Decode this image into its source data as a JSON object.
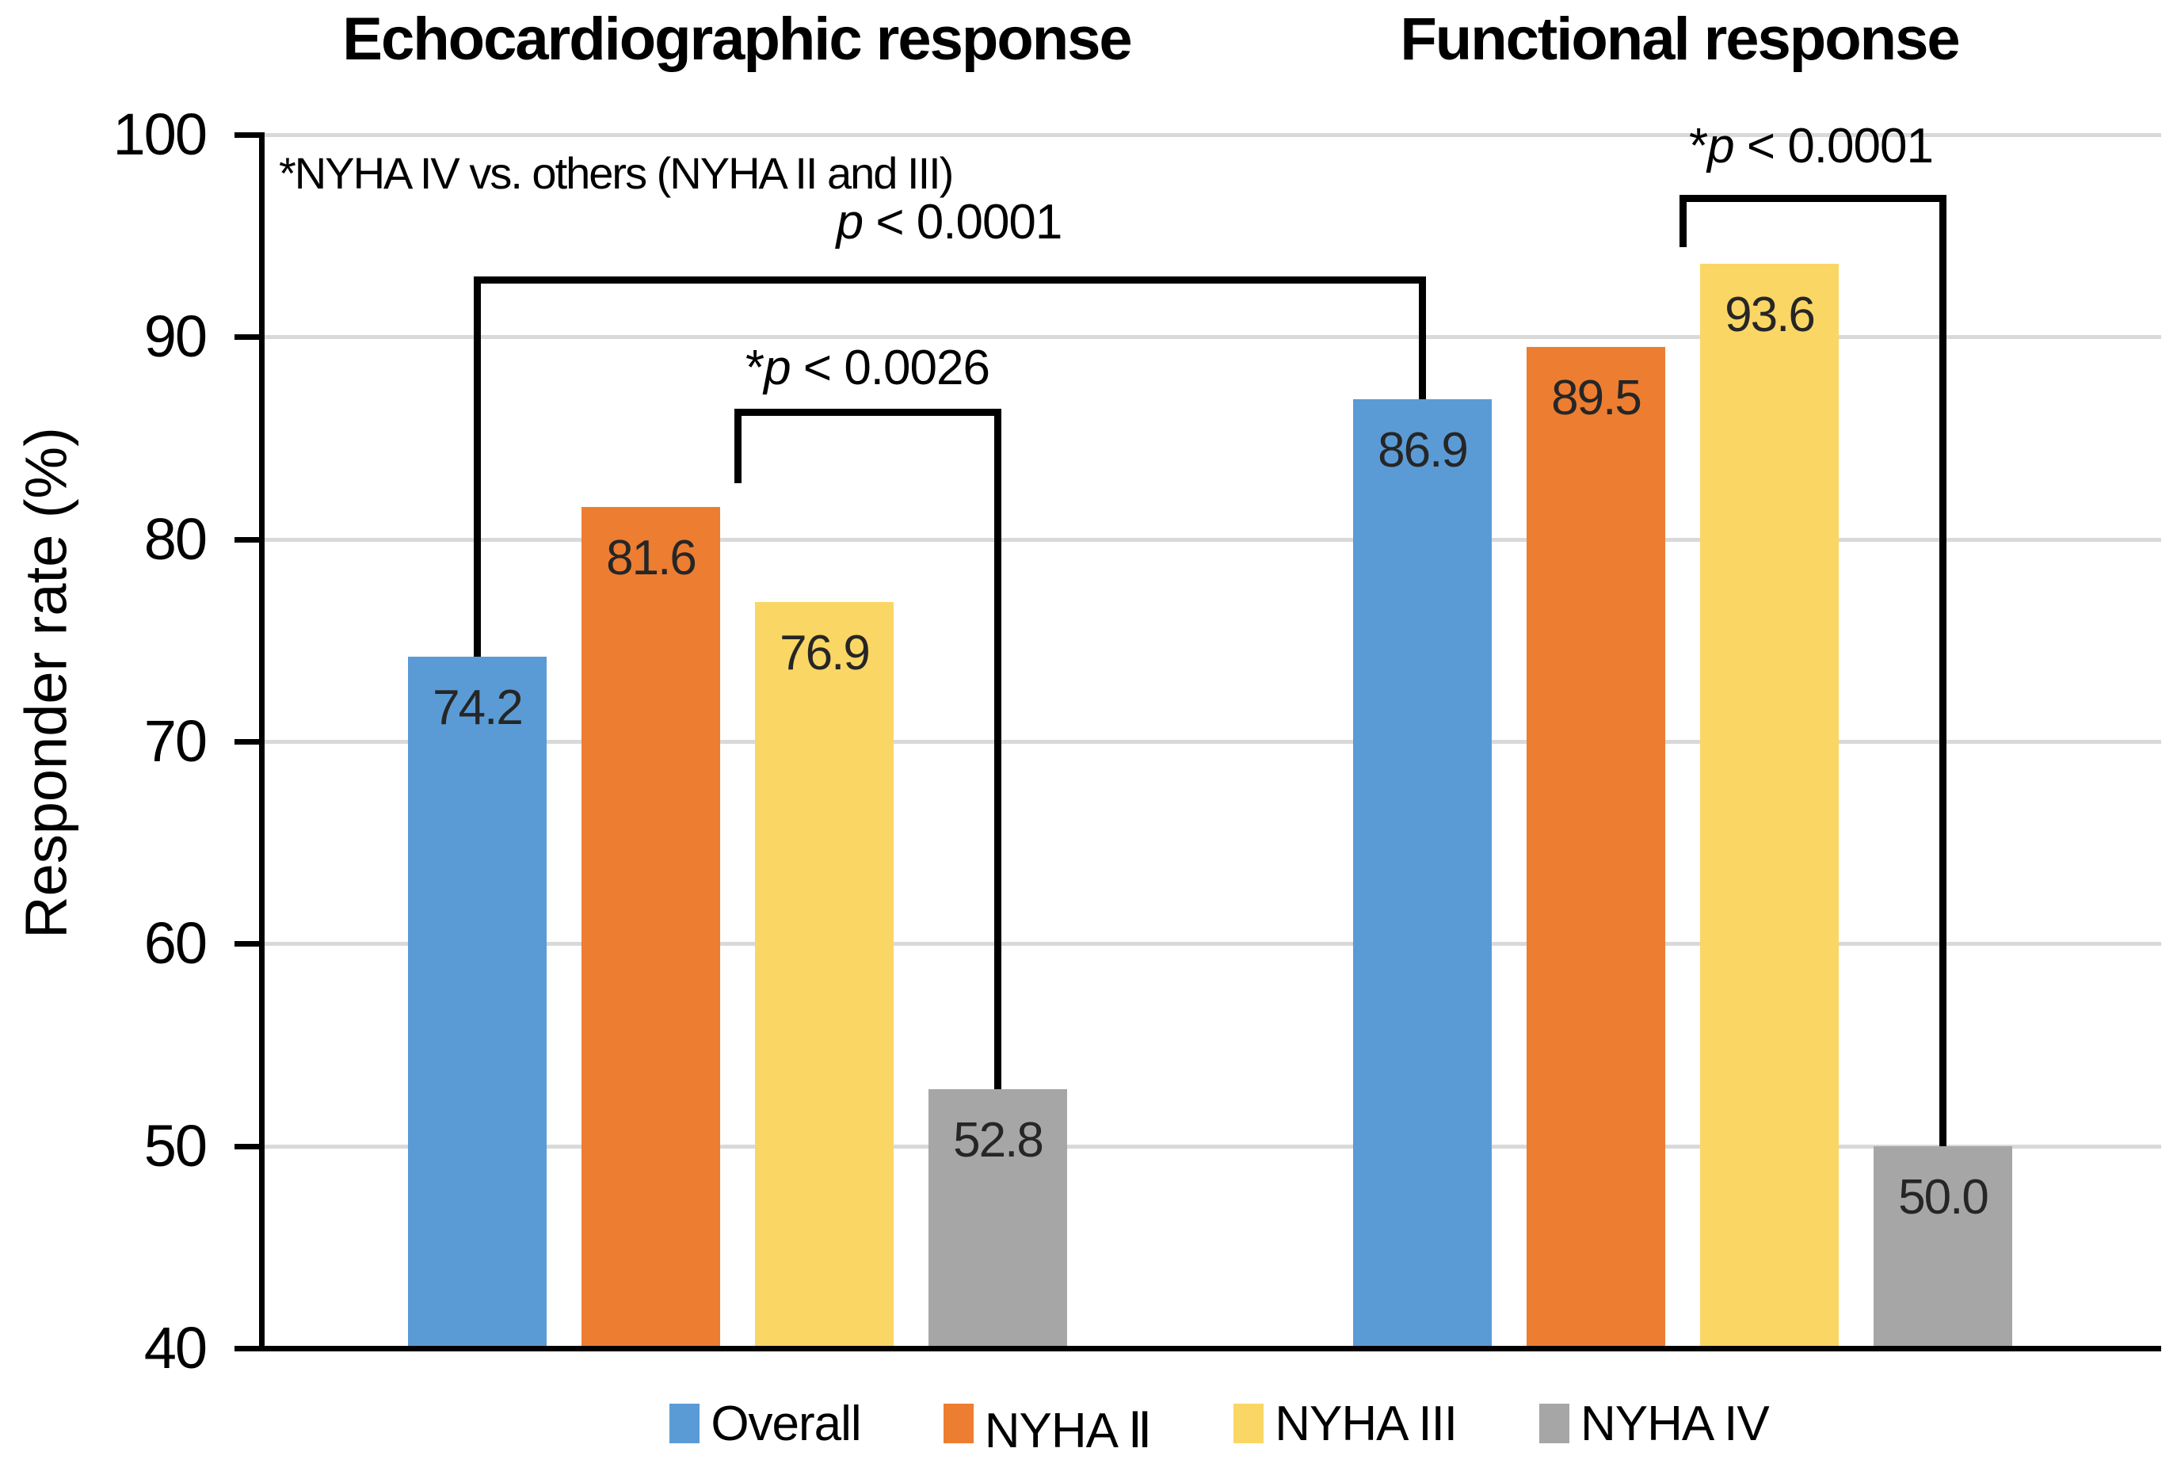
{
  "chart_data": {
    "type": "bar",
    "group_titles": {
      "left": "Echocardiographic response",
      "right": "Functional response"
    },
    "ylabel": "Responder rate (%)",
    "ylim": [
      40,
      100
    ],
    "yticks": [
      40,
      50,
      60,
      70,
      80,
      90,
      100
    ],
    "grid": true,
    "legend_position": "bottom",
    "groups": [
      "Echocardiographic response",
      "Functional response"
    ],
    "series": [
      {
        "name": "Overall",
        "color": "#5B9BD5",
        "values": [
          74.2,
          86.9
        ]
      },
      {
        "name": "NYHA Ⅱ",
        "color": "#ED7D31",
        "values": [
          81.6,
          89.5
        ]
      },
      {
        "name": "NYHA III",
        "color": "#FAD664",
        "values": [
          76.9,
          93.6
        ]
      },
      {
        "name": "NYHA IV",
        "color": "#A6A6A6",
        "values": [
          52.8,
          50.0
        ]
      }
    ],
    "annotations": {
      "note": "*NYHA IV vs. others (NYHA II and III)",
      "comparisons": [
        {
          "id": "overall",
          "label": "p < 0.0001",
          "between": [
            "Echocardiographic Overall",
            "Functional Overall"
          ]
        },
        {
          "id": "echo-nyha4",
          "label": "*p < 0.0026",
          "between": [
            "Echocardiographic NYHA II and III",
            "Echocardiographic NYHA IV"
          ]
        },
        {
          "id": "functional-nyha4",
          "label": "*p < 0.0001",
          "between": [
            "Functional NYHA II and III",
            "Functional NYHA IV"
          ]
        }
      ]
    },
    "colors": {
      "grid": "#D9D9D9",
      "axis": "#000000",
      "value_label": "#262626"
    }
  }
}
